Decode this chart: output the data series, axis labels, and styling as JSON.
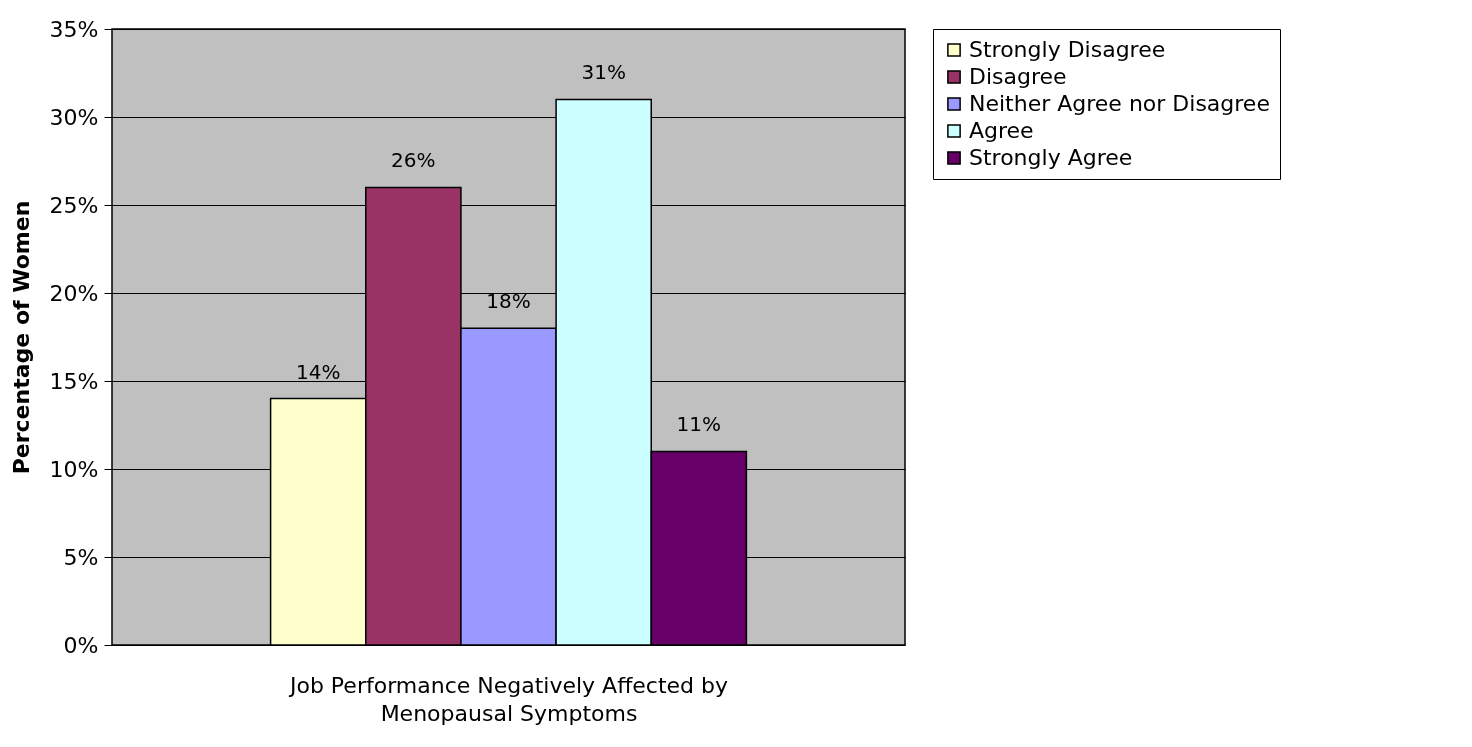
{
  "chart_data": {
    "type": "bar",
    "xlabel": "Job Performance Negatively Affected by Menopausal Symptoms",
    "ylabel": "Percentage of Women",
    "categories": [
      null
    ],
    "series": [
      {
        "name": "Strongly Disagree",
        "color": "#ffffcc",
        "values": [
          14
        ],
        "value_labels": [
          "14%"
        ]
      },
      {
        "name": "Disagree",
        "color": "#993366",
        "values": [
          26
        ],
        "value_labels": [
          "26%"
        ]
      },
      {
        "name": "Neither Agree nor Disagree",
        "color": "#9999ff",
        "values": [
          18
        ],
        "value_labels": [
          "18%"
        ]
      },
      {
        "name": "Agree",
        "color": "#ccffff",
        "values": [
          31
        ],
        "value_labels": [
          "31%"
        ]
      },
      {
        "name": "Strongly Agree",
        "color": "#660066",
        "values": [
          11
        ],
        "value_labels": [
          "11%"
        ]
      }
    ],
    "ylim": [
      0,
      35
    ],
    "yticks": [
      {
        "value": 0,
        "label": "0%"
      },
      {
        "value": 5,
        "label": "5%"
      },
      {
        "value": 10,
        "label": "10%"
      },
      {
        "value": 15,
        "label": "15%"
      },
      {
        "value": 20,
        "label": "20%"
      },
      {
        "value": 25,
        "label": "25%"
      },
      {
        "value": 30,
        "label": "30%"
      },
      {
        "value": 35,
        "label": "35%"
      }
    ],
    "grid": "y",
    "legend": "right"
  }
}
